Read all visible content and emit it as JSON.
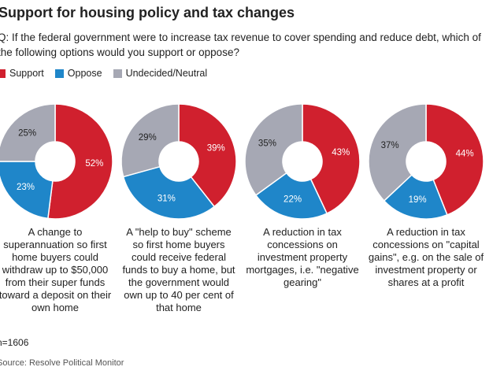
{
  "title": "Support for housing policy and tax changes",
  "subtitle": "Q: If the federal government were to increase tax revenue to cover spending and reduce debt, which of the following options would you support or oppose?",
  "note": "n=1606",
  "source": "Source: Resolve Political Monitor",
  "chart_data": [
    {
      "type": "donut",
      "title": "A change to superannuation so first home buyers could withdraw up to $50,000 from their super funds toward a deposit on their own home",
      "categories": [
        "Support",
        "Oppose",
        "Undecided/Neutral"
      ],
      "values": [
        52,
        23,
        25
      ],
      "value_labels": [
        "52%",
        "23%",
        "25%"
      ],
      "colors": [
        "#d0202e",
        "#1f86c9",
        "#a6a8b4"
      ]
    },
    {
      "type": "donut",
      "title": "A \"help to buy\" scheme so first home buyers could receive federal funds to buy a home, but the government would own up to 40 per cent of that home",
      "categories": [
        "Support",
        "Oppose",
        "Undecided/Neutral"
      ],
      "values": [
        39,
        31,
        29
      ],
      "value_labels": [
        "39%",
        "31%",
        "29%"
      ],
      "colors": [
        "#d0202e",
        "#1f86c9",
        "#a6a8b4"
      ]
    },
    {
      "type": "donut",
      "title": "A reduction in tax concessions on investment property mortgages, i.e. \"negative gearing\"",
      "categories": [
        "Support",
        "Oppose",
        "Undecided/Neutral"
      ],
      "values": [
        43,
        22,
        35
      ],
      "value_labels": [
        "43%",
        "22%",
        "35%"
      ],
      "colors": [
        "#d0202e",
        "#1f86c9",
        "#a6a8b4"
      ]
    },
    {
      "type": "donut",
      "title": "A reduction in tax concessions on \"capital gains\", e.g. on the sale of investment property or shares at a profit",
      "categories": [
        "Support",
        "Oppose",
        "Undecided/Neutral"
      ],
      "values": [
        44,
        19,
        37
      ],
      "value_labels": [
        "44%",
        "19%",
        "37%"
      ],
      "colors": [
        "#d0202e",
        "#1f86c9",
        "#a6a8b4"
      ]
    }
  ]
}
